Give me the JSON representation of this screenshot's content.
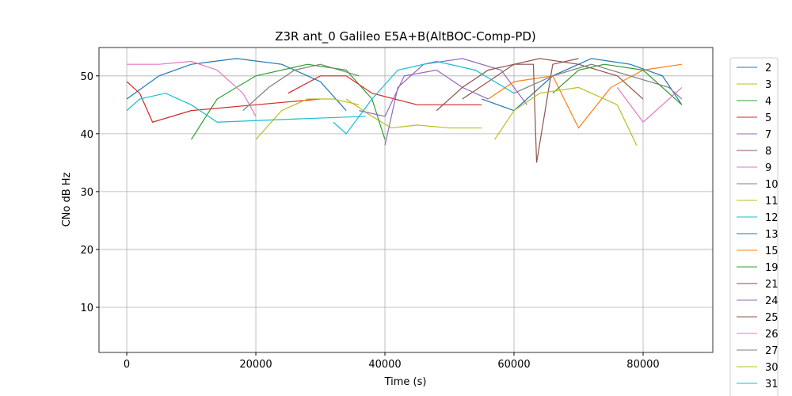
{
  "chart_data": {
    "type": "line",
    "title": "Z3R ant_0 Galileo E5A+B(AltBOC-Comp-PD)",
    "x_label": "Time (s)",
    "y_label": "CNo dB Hz",
    "xlim": [
      -4300,
      90800
    ],
    "ylim": [
      2.2,
      54.9
    ],
    "xticks": [
      0,
      20000,
      40000,
      60000,
      80000
    ],
    "yticks": [
      10,
      20,
      30,
      40,
      50
    ],
    "grid": true,
    "legend": "outside right",
    "series": [
      {
        "name": "2",
        "color": "#1f77b4",
        "x": [
          0,
          5000,
          10000,
          17000,
          24000,
          30000,
          34000
        ],
        "values": [
          46,
          50,
          52,
          53,
          52,
          49,
          44
        ]
      },
      {
        "name": "3",
        "color": "#bcbd22",
        "x": [
          34000,
          38000,
          41000,
          45000,
          50000,
          55000
        ],
        "values": [
          46,
          43,
          41,
          41.5,
          41,
          41
        ]
      },
      {
        "name": "4",
        "color": "#2ca02c",
        "x": [
          10000,
          14000,
          20000,
          28000,
          34000,
          38000,
          40000
        ],
        "values": [
          39,
          46,
          50,
          52,
          51,
          46,
          39
        ]
      },
      {
        "name": "5",
        "color": "#d62728",
        "x": [
          0,
          2000,
          4000,
          10000,
          20000,
          30000
        ],
        "values": [
          49,
          47,
          42,
          44,
          45,
          46
        ]
      },
      {
        "name": "7",
        "color": "#9467bd",
        "x": [
          40000,
          42000,
          46000,
          52000,
          58000,
          62000
        ],
        "values": [
          38,
          48,
          52,
          53,
          51,
          45
        ]
      },
      {
        "name": "8",
        "color": "#8c564b",
        "x": [
          52000,
          56000,
          60000,
          64000,
          70000,
          76000,
          80000
        ],
        "values": [
          46,
          49,
          52,
          53,
          52,
          50,
          46
        ]
      },
      {
        "name": "9",
        "color": "#e377c2",
        "x": [
          0,
          5000,
          10000,
          14000,
          18000,
          20000
        ],
        "values": [
          52,
          52,
          52.5,
          51,
          47,
          43
        ]
      },
      {
        "name": "10",
        "color": "#7f7f7f",
        "x": [
          18000,
          22000,
          26000,
          30000,
          36000
        ],
        "values": [
          44,
          48,
          51,
          52,
          50
        ]
      },
      {
        "name": "11",
        "color": "#bcbd22",
        "x": [
          20000,
          24000,
          28000,
          32000,
          36000
        ],
        "values": [
          39,
          44,
          46,
          46,
          45
        ]
      },
      {
        "name": "12",
        "color": "#17becf",
        "x": [
          0,
          2000,
          6000,
          10000,
          14000,
          25000,
          37000
        ],
        "values": [
          44,
          46,
          47,
          45,
          42,
          42.5,
          43
        ]
      },
      {
        "name": "13",
        "color": "#1f77b4",
        "x": [
          55000,
          60000,
          66000,
          72000,
          78000,
          83000,
          86000
        ],
        "values": [
          46,
          44,
          50,
          53,
          52,
          50,
          45
        ]
      },
      {
        "name": "15",
        "color": "#ff7f0e",
        "x": [
          56000,
          60000,
          66000,
          70000,
          75000,
          80000,
          86000
        ],
        "values": [
          46,
          49,
          50,
          41,
          48,
          51,
          52
        ]
      },
      {
        "name": "19",
        "color": "#2ca02c",
        "x": [
          66000,
          70000,
          74000,
          80000,
          86000
        ],
        "values": [
          47,
          51,
          52,
          51,
          45
        ]
      },
      {
        "name": "21",
        "color": "#d62728",
        "x": [
          25000,
          30000,
          34000,
          38000,
          45000,
          55000
        ],
        "values": [
          47,
          50,
          50,
          47,
          45,
          45
        ]
      },
      {
        "name": "24",
        "color": "#9467bd",
        "x": [
          36000,
          40000,
          43000,
          48000,
          52000,
          56000
        ],
        "values": [
          44,
          43,
          50,
          51,
          48,
          46
        ]
      },
      {
        "name": "25",
        "color": "#8c564b",
        "x": [
          48000,
          52000,
          56000,
          60000,
          63000,
          63500,
          66000,
          70000
        ],
        "values": [
          44,
          48,
          51,
          52,
          52,
          35,
          52,
          53
        ]
      },
      {
        "name": "26",
        "color": "#e377c2",
        "x": [
          76000,
          80000,
          84000,
          86000
        ],
        "values": [
          48,
          42,
          46,
          48
        ]
      },
      {
        "name": "27",
        "color": "#7f7f7f",
        "x": [
          60000,
          66000,
          72000,
          78000,
          84000,
          86000
        ],
        "values": [
          47,
          50,
          52,
          50,
          48,
          46
        ]
      },
      {
        "name": "30",
        "color": "#bcbd22",
        "x": [
          57000,
          60000,
          64000,
          70000,
          76000,
          79000
        ],
        "values": [
          39,
          44,
          47,
          48,
          45,
          38
        ]
      },
      {
        "name": "31",
        "color": "#17becf",
        "x": [
          32000,
          34000,
          38000,
          42000,
          48000,
          54000,
          60000
        ],
        "values": [
          42,
          40,
          46,
          51,
          52.5,
          51,
          47
        ]
      }
    ]
  }
}
